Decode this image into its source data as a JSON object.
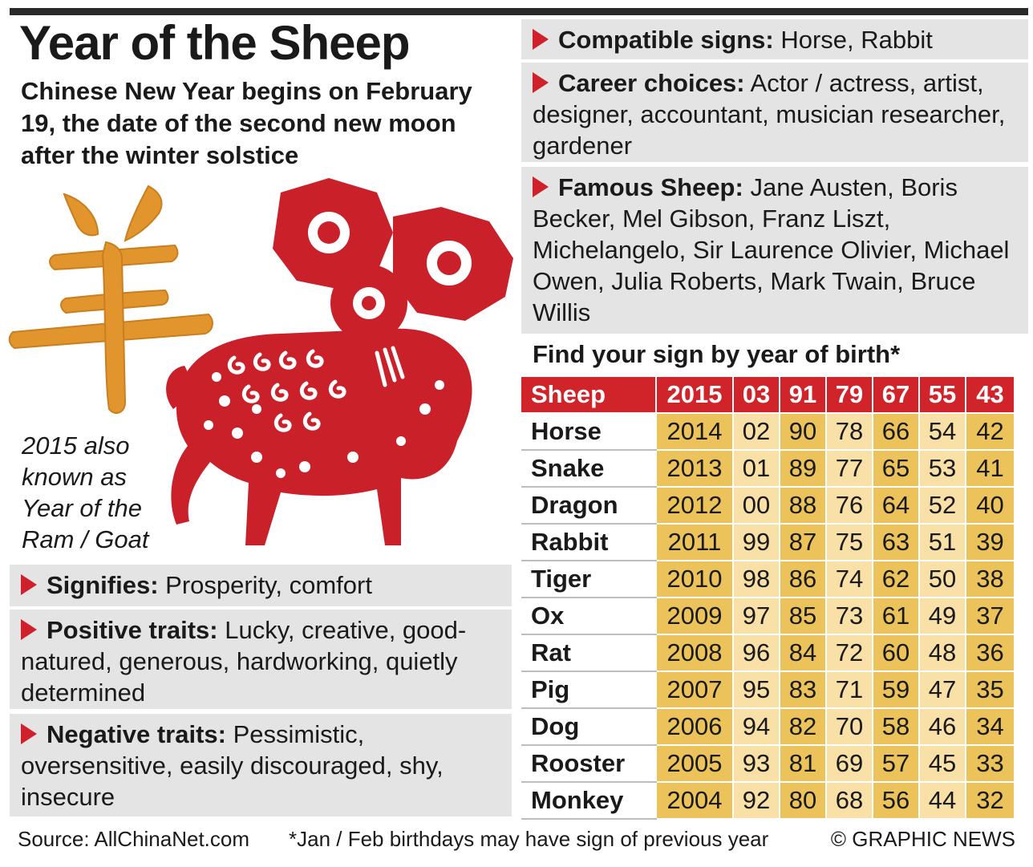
{
  "title": "Year of the Sheep",
  "subtitle": "Chinese New Year begins on February 19, the date of the second new moon after the winter solstice",
  "aka_lines": [
    "2015 also",
    "known as",
    "Year of the",
    "Ram / Goat"
  ],
  "left_boxes": {
    "signifies": {
      "label": "Signifies:",
      "text": "Prosperity, comfort"
    },
    "positive": {
      "label": "Positive traits:",
      "text": "Lucky, creative, good-natured, generous, hardworking, quietly determined"
    },
    "negative": {
      "label": "Negative traits:",
      "text": "Pessimistic, oversensitive, easily discouraged, shy, insecure"
    }
  },
  "right_boxes": {
    "compatible": {
      "label": "Compatible signs:",
      "text": "Horse, Rabbit"
    },
    "career": {
      "label": "Career choices:",
      "text": "Actor / actress, artist, designer, accountant, musician researcher, gardener"
    },
    "famous": {
      "label": "Famous Sheep:",
      "text": "Jane Austen, Boris Becker, Mel Gibson, Franz Liszt, Michelangelo, Sir Laurence Olivier, Michael Owen, Julia Roberts, Mark Twain, Bruce Willis"
    }
  },
  "table": {
    "heading": "Find your sign by year of birth*",
    "header": [
      "Sheep",
      "2015",
      "03",
      "91",
      "79",
      "67",
      "55",
      "43"
    ],
    "rows": [
      [
        "Horse",
        "2014",
        "02",
        "90",
        "78",
        "66",
        "54",
        "42"
      ],
      [
        "Snake",
        "2013",
        "01",
        "89",
        "77",
        "65",
        "53",
        "41"
      ],
      [
        "Dragon",
        "2012",
        "00",
        "88",
        "76",
        "64",
        "52",
        "40"
      ],
      [
        "Rabbit",
        "2011",
        "99",
        "87",
        "75",
        "63",
        "51",
        "39"
      ],
      [
        "Tiger",
        "2010",
        "98",
        "86",
        "74",
        "62",
        "50",
        "38"
      ],
      [
        "Ox",
        "2009",
        "97",
        "85",
        "73",
        "61",
        "49",
        "37"
      ],
      [
        "Rat",
        "2008",
        "96",
        "84",
        "72",
        "60",
        "48",
        "36"
      ],
      [
        "Pig",
        "2007",
        "95",
        "83",
        "71",
        "59",
        "47",
        "35"
      ],
      [
        "Dog",
        "2006",
        "94",
        "82",
        "70",
        "58",
        "46",
        "34"
      ],
      [
        "Rooster",
        "2005",
        "93",
        "81",
        "69",
        "57",
        "45",
        "33"
      ],
      [
        "Monkey",
        "2004",
        "92",
        "80",
        "68",
        "56",
        "44",
        "32"
      ]
    ]
  },
  "footer": {
    "source": "Source: AllChinaNet.com",
    "note": "*Jan / Feb birthdays may have sign of previous year",
    "credit": "© GRAPHIC NEWS"
  },
  "colors": {
    "accent_red": "#d1232a",
    "gold": "#e2952d",
    "cell_dark": "#ecc35b",
    "cell_light": "#f8e0a6",
    "box_grey": "#e4e4e4"
  },
  "icons": [
    "chinese-character-yang",
    "papercut-sheep-illustration",
    "red-triangle-bullet"
  ]
}
